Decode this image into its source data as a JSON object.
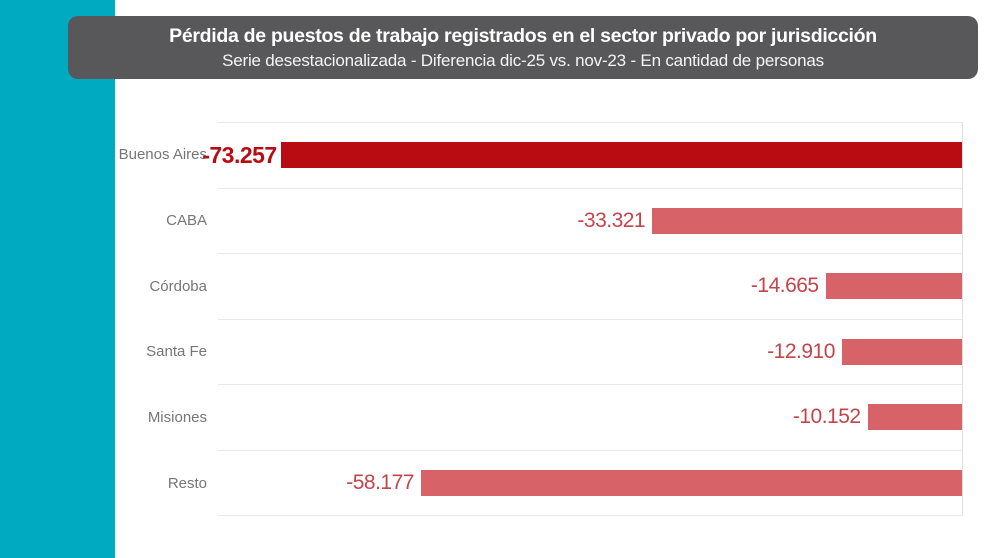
{
  "header": {
    "title": "Pérdida de puestos de trabajo registrados en el sector privado por jurisdicción",
    "subtitle": "Serie desestacionalizada - Diferencia dic-25 vs. nov-23 - En cantidad de personas",
    "background": "#58585a",
    "title_color": "#ffffff",
    "subtitle_color": "#f5f5f5"
  },
  "accent_stripe_color": "#00abc2",
  "chart_data": {
    "type": "bar",
    "orientation": "horizontal",
    "title": "Pérdida de puestos de trabajo registrados en el sector privado por jurisdicción",
    "subtitle": "Serie desestacionalizada - Diferencia dic-25 vs. nov-23 - En cantidad de personas",
    "categories": [
      "Buenos Aires",
      "CABA",
      "Córdoba",
      "Santa Fe",
      "Misiones",
      "Resto"
    ],
    "values": [
      -73257,
      -33321,
      -14665,
      -12910,
      -10152,
      -58177
    ],
    "value_labels": [
      "-73.257",
      "-33.321",
      "-14.665",
      "-12.910",
      "-10.152",
      "-58.177"
    ],
    "xlim": [
      -80000,
      0
    ],
    "grid": "horizontal row separators, zero axis on right",
    "legend": "none",
    "highlight_index": 0,
    "bar_color": "#d76268",
    "highlight_bar_color": "#b90c12",
    "value_color": "#c4444b",
    "highlight_value_color": "#b90c12",
    "category_label_color": "#767676"
  }
}
